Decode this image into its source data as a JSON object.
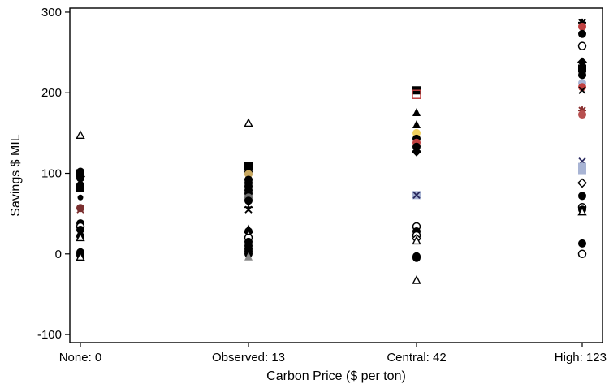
{
  "chart_data": {
    "type": "scatter",
    "title": "",
    "xlabel": "Carbon Price ($ per ton)",
    "ylabel": "Savings $ MIL",
    "categories": [
      "None: 0",
      "Observed: 13",
      "Central: 42",
      "High: 123"
    ],
    "ylim": [
      -110,
      305
    ],
    "yticks": [
      -100,
      0,
      100,
      200,
      300
    ],
    "grid": false,
    "legend": "none",
    "points": [
      {
        "x": "None: 0",
        "y": 147,
        "marker": "triangle-open",
        "color": "#000000"
      },
      {
        "x": "None: 0",
        "y": 102,
        "marker": "circle",
        "color": "#000000"
      },
      {
        "x": "None: 0",
        "y": 100,
        "marker": "square",
        "color": "#000000"
      },
      {
        "x": "None: 0",
        "y": 98,
        "marker": "circle",
        "color": "#000000"
      },
      {
        "x": "None: 0",
        "y": 96,
        "marker": "diamond",
        "color": "#000000"
      },
      {
        "x": "None: 0",
        "y": 94,
        "marker": "circle",
        "color": "#000000"
      },
      {
        "x": "None: 0",
        "y": 91,
        "marker": "cross",
        "color": "#000000"
      },
      {
        "x": "None: 0",
        "y": 88,
        "marker": "triangle",
        "color": "#000000"
      },
      {
        "x": "None: 0",
        "y": 85,
        "marker": "circle",
        "color": "#000000"
      },
      {
        "x": "None: 0",
        "y": 82,
        "marker": "square",
        "color": "#000000"
      },
      {
        "x": "None: 0",
        "y": 70,
        "marker": "circle-small",
        "color": "#000000"
      },
      {
        "x": "None: 0",
        "y": 57,
        "marker": "circle",
        "color": "#7a2f2f"
      },
      {
        "x": "None: 0",
        "y": 55,
        "marker": "cross",
        "color": "#7a2f2f"
      },
      {
        "x": "None: 0",
        "y": 38,
        "marker": "circle",
        "color": "#000000"
      },
      {
        "x": "None: 0",
        "y": 34,
        "marker": "circle-open",
        "color": "#000000"
      },
      {
        "x": "None: 0",
        "y": 30,
        "marker": "circle",
        "color": "#000000"
      },
      {
        "x": "None: 0",
        "y": 25,
        "marker": "triangle",
        "color": "#000000"
      },
      {
        "x": "None: 0",
        "y": 22,
        "marker": "circle",
        "color": "#000000"
      },
      {
        "x": "None: 0",
        "y": 20,
        "marker": "triangle-open",
        "color": "#000000"
      },
      {
        "x": "None: 0",
        "y": 2,
        "marker": "circle",
        "color": "#000000"
      },
      {
        "x": "None: 0",
        "y": 0,
        "marker": "circle",
        "color": "#000000"
      },
      {
        "x": "None: 0",
        "y": -2,
        "marker": "circle",
        "color": "#000000"
      },
      {
        "x": "None: 0",
        "y": -4,
        "marker": "triangle-open",
        "color": "#000000"
      },
      {
        "x": "Observed: 13",
        "y": 162,
        "marker": "triangle-open",
        "color": "#000000"
      },
      {
        "x": "Observed: 13",
        "y": 109,
        "marker": "square",
        "color": "#000000"
      },
      {
        "x": "Observed: 13",
        "y": 106,
        "marker": "circle",
        "color": "#000000"
      },
      {
        "x": "Observed: 13",
        "y": 102,
        "marker": "circle",
        "color": "#000000"
      },
      {
        "x": "Observed: 13",
        "y": 99,
        "marker": "circle",
        "color": "#c8a860"
      },
      {
        "x": "Observed: 13",
        "y": 92,
        "marker": "circle",
        "color": "#000000"
      },
      {
        "x": "Observed: 13",
        "y": 88,
        "marker": "circle",
        "color": "#000000"
      },
      {
        "x": "Observed: 13",
        "y": 84,
        "marker": "circle",
        "color": "#000000"
      },
      {
        "x": "Observed: 13",
        "y": 79,
        "marker": "circle",
        "color": "#000000"
      },
      {
        "x": "Observed: 13",
        "y": 75,
        "marker": "circle",
        "color": "#000000"
      },
      {
        "x": "Observed: 13",
        "y": 70,
        "marker": "circle",
        "color": "#6f6f6f"
      },
      {
        "x": "Observed: 13",
        "y": 68,
        "marker": "circle",
        "color": "#6f6f6f"
      },
      {
        "x": "Observed: 13",
        "y": 66,
        "marker": "circle",
        "color": "#000000"
      },
      {
        "x": "Observed: 13",
        "y": 58,
        "marker": "plus",
        "color": "#000000"
      },
      {
        "x": "Observed: 13",
        "y": 55,
        "marker": "cross",
        "color": "#000000"
      },
      {
        "x": "Observed: 13",
        "y": 30,
        "marker": "triangle-open",
        "color": "#000000"
      },
      {
        "x": "Observed: 13",
        "y": 28,
        "marker": "circle",
        "color": "#000000"
      },
      {
        "x": "Observed: 13",
        "y": 24,
        "marker": "triangle-open",
        "color": "#000000"
      },
      {
        "x": "Observed: 13",
        "y": 20,
        "marker": "circle-open",
        "color": "#000000"
      },
      {
        "x": "Observed: 13",
        "y": 15,
        "marker": "circle",
        "color": "#000000"
      },
      {
        "x": "Observed: 13",
        "y": 10,
        "marker": "circle",
        "color": "#000000"
      },
      {
        "x": "Observed: 13",
        "y": 6,
        "marker": "circle",
        "color": "#000000"
      },
      {
        "x": "Observed: 13",
        "y": 3,
        "marker": "circle",
        "color": "#000000"
      },
      {
        "x": "Observed: 13",
        "y": 0,
        "marker": "circle",
        "color": "#000000"
      },
      {
        "x": "Observed: 13",
        "y": -4,
        "marker": "triangle",
        "color": "#888888"
      },
      {
        "x": "Central: 42",
        "y": 203,
        "marker": "square",
        "color": "#000000"
      },
      {
        "x": "Central: 42",
        "y": 198,
        "marker": "square-open",
        "color": "#c04040"
      },
      {
        "x": "Central: 42",
        "y": 175,
        "marker": "triangle",
        "color": "#000000"
      },
      {
        "x": "Central: 42",
        "y": 160,
        "marker": "triangle",
        "color": "#000000"
      },
      {
        "x": "Central: 42",
        "y": 150,
        "marker": "circle",
        "color": "#f0d060"
      },
      {
        "x": "Central: 42",
        "y": 143,
        "marker": "circle",
        "color": "#000000"
      },
      {
        "x": "Central: 42",
        "y": 138,
        "marker": "circle",
        "color": "#c04040"
      },
      {
        "x": "Central: 42",
        "y": 133,
        "marker": "circle",
        "color": "#000000"
      },
      {
        "x": "Central: 42",
        "y": 127,
        "marker": "diamond",
        "color": "#000000"
      },
      {
        "x": "Central: 42",
        "y": 73,
        "marker": "square",
        "color": "#a8b4d4"
      },
      {
        "x": "Central: 42",
        "y": 73,
        "marker": "cross",
        "color": "#2a2a60"
      },
      {
        "x": "Central: 42",
        "y": 34,
        "marker": "circle-open",
        "color": "#000000"
      },
      {
        "x": "Central: 42",
        "y": 28,
        "marker": "circle",
        "color": "#000000"
      },
      {
        "x": "Central: 42",
        "y": 23,
        "marker": "circle-open",
        "color": "#000000"
      },
      {
        "x": "Central: 42",
        "y": 19,
        "marker": "diamond-open",
        "color": "#000000"
      },
      {
        "x": "Central: 42",
        "y": 16,
        "marker": "triangle-open",
        "color": "#000000"
      },
      {
        "x": "Central: 42",
        "y": -3,
        "marker": "circle",
        "color": "#000000"
      },
      {
        "x": "Central: 42",
        "y": -5,
        "marker": "circle",
        "color": "#000000"
      },
      {
        "x": "Central: 42",
        "y": -33,
        "marker": "triangle-open",
        "color": "#000000"
      },
      {
        "x": "High: 123",
        "y": 287,
        "marker": "star",
        "color": "#000000"
      },
      {
        "x": "High: 123",
        "y": 282,
        "marker": "circle",
        "color": "#c04040"
      },
      {
        "x": "High: 123",
        "y": 273,
        "marker": "circle",
        "color": "#000000"
      },
      {
        "x": "High: 123",
        "y": 258,
        "marker": "circle-open",
        "color": "#000000"
      },
      {
        "x": "High: 123",
        "y": 238,
        "marker": "diamond",
        "color": "#000000"
      },
      {
        "x": "High: 123",
        "y": 230,
        "marker": "square",
        "color": "#000000"
      },
      {
        "x": "High: 123",
        "y": 222,
        "marker": "circle",
        "color": "#000000"
      },
      {
        "x": "High: 123",
        "y": 212,
        "marker": "circle",
        "color": "#a8b4d4"
      },
      {
        "x": "High: 123",
        "y": 207,
        "marker": "circle",
        "color": "#c04040"
      },
      {
        "x": "High: 123",
        "y": 203,
        "marker": "cross",
        "color": "#000000"
      },
      {
        "x": "High: 123",
        "y": 178,
        "marker": "star",
        "color": "#8a3030"
      },
      {
        "x": "High: 123",
        "y": 173,
        "marker": "circle",
        "color": "#b85050"
      },
      {
        "x": "High: 123",
        "y": 115,
        "marker": "cross",
        "color": "#2a2a60"
      },
      {
        "x": "High: 123",
        "y": 108,
        "marker": "square",
        "color": "#a8b4d4"
      },
      {
        "x": "High: 123",
        "y": 104,
        "marker": "square",
        "color": "#a8b4d4"
      },
      {
        "x": "High: 123",
        "y": 88,
        "marker": "diamond-open",
        "color": "#000000"
      },
      {
        "x": "High: 123",
        "y": 72,
        "marker": "circle",
        "color": "#000000"
      },
      {
        "x": "High: 123",
        "y": 58,
        "marker": "circle-open",
        "color": "#000000"
      },
      {
        "x": "High: 123",
        "y": 55,
        "marker": "circle",
        "color": "#000000"
      },
      {
        "x": "High: 123",
        "y": 52,
        "marker": "triangle-open",
        "color": "#000000"
      },
      {
        "x": "High: 123",
        "y": 13,
        "marker": "circle",
        "color": "#000000"
      },
      {
        "x": "High: 123",
        "y": 0,
        "marker": "circle-open",
        "color": "#000000"
      }
    ]
  }
}
